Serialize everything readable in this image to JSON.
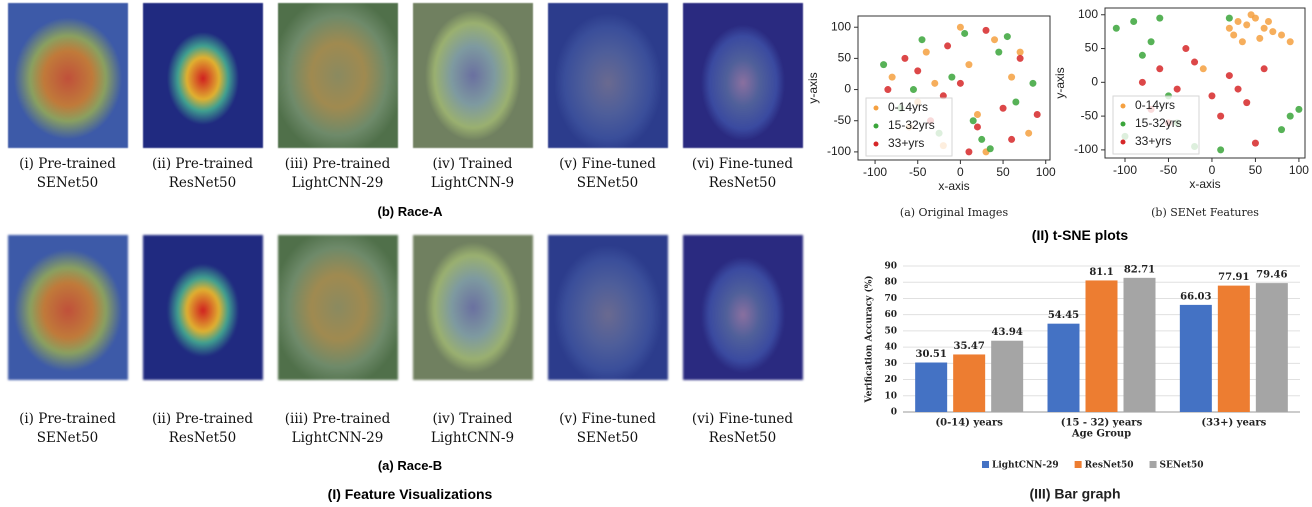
{
  "feature_visualizations": {
    "title": "(I) Feature Visualizations",
    "groups": [
      {
        "title": "(b) Race-A",
        "labels": [
          [
            "(i) Pre-trained",
            "SENet50"
          ],
          [
            "(ii) Pre-trained",
            "ResNet50"
          ],
          [
            "(iii) Pre-trained",
            "LightCNN-29"
          ],
          [
            "(iv) Trained",
            "LightCNN-9"
          ],
          [
            "(v) Fine-tuned",
            "SENet50"
          ],
          [
            "(vi) Fine-tuned",
            "ResNet50"
          ]
        ]
      },
      {
        "title": "(a) Race-B",
        "labels": [
          [
            "(i) Pre-trained",
            "SENet50"
          ],
          [
            "(ii) Pre-trained",
            "ResNet50"
          ],
          [
            "(iii) Pre-trained",
            "LightCNN-29"
          ],
          [
            "(iv) Trained",
            "LightCNN-9"
          ],
          [
            "(v) Fine-tuned",
            "SENet50"
          ],
          [
            "(vi) Fine-tuned",
            "ResNet50"
          ]
        ]
      }
    ]
  },
  "tsne_title": "(II) t-SNE plots",
  "chart_data": [
    {
      "type": "scatter",
      "caption": "(a) Original Images",
      "x_label": "x-axis",
      "y_label": "y-axis",
      "xlim": [
        -120,
        105
      ],
      "ylim": [
        -113,
        118
      ],
      "xticks": [
        -100,
        -50,
        0,
        50,
        100
      ],
      "yticks": [
        -100,
        -50,
        0,
        50,
        100
      ],
      "legend": "lower left",
      "series": [
        {
          "name": "0-14yrs",
          "color": "#f5a040",
          "x": [
            -80,
            -60,
            -40,
            -20,
            0,
            20,
            40,
            60,
            80,
            -50,
            30,
            10,
            -30,
            70
          ],
          "values": [
            20,
            -60,
            60,
            -90,
            100,
            -40,
            80,
            20,
            -70,
            -20,
            -100,
            40,
            10,
            60
          ]
        },
        {
          "name": "15-32yrs",
          "color": "#3aa53a",
          "x": [
            -90,
            -70,
            -45,
            -25,
            5,
            25,
            45,
            65,
            85,
            -55,
            35,
            -10,
            15,
            55
          ],
          "values": [
            40,
            -30,
            80,
            -70,
            90,
            -80,
            60,
            -20,
            10,
            0,
            -95,
            20,
            -50,
            85
          ]
        },
        {
          "name": "33+yrs",
          "color": "#d62728",
          "x": [
            -85,
            -65,
            -35,
            -15,
            10,
            30,
            50,
            70,
            90,
            -50,
            20,
            0,
            -20,
            60
          ],
          "values": [
            0,
            50,
            -50,
            70,
            -100,
            95,
            -30,
            50,
            -40,
            30,
            -60,
            10,
            -10,
            -80
          ]
        }
      ]
    },
    {
      "type": "scatter",
      "caption": "(b) SENet Features",
      "x_label": "x-axis",
      "y_label": "y-axis",
      "xlim": [
        -123,
        107
      ],
      "ylim": [
        -112,
        110
      ],
      "xticks": [
        -100,
        -50,
        0,
        50,
        100
      ],
      "yticks": [
        -100,
        -50,
        0,
        50,
        100
      ],
      "legend": "lower left",
      "series": [
        {
          "name": "0-14yrs",
          "color": "#f5a040",
          "x": [
            20,
            30,
            40,
            50,
            60,
            70,
            80,
            35,
            55,
            45,
            25,
            65,
            -10,
            90
          ],
          "values": [
            80,
            90,
            85,
            95,
            80,
            75,
            70,
            60,
            65,
            100,
            70,
            90,
            20,
            60
          ]
        },
        {
          "name": "15-32yrs",
          "color": "#3aa53a",
          "x": [
            -110,
            -90,
            -70,
            -50,
            -60,
            10,
            -40,
            100,
            90,
            -100,
            -80,
            20,
            80,
            -20
          ],
          "values": [
            80,
            90,
            60,
            -20,
            95,
            -100,
            -60,
            -40,
            -50,
            -80,
            40,
            95,
            -70,
            -95
          ]
        },
        {
          "name": "33+yrs",
          "color": "#d62728",
          "x": [
            -80,
            -60,
            -40,
            -20,
            0,
            20,
            40,
            60,
            -50,
            -30,
            10,
            30,
            -70,
            50
          ],
          "values": [
            0,
            20,
            -10,
            30,
            -20,
            10,
            -30,
            20,
            -60,
            50,
            -50,
            -10,
            -40,
            -90
          ]
        }
      ]
    },
    {
      "type": "bar",
      "caption": "(III) Bar graph",
      "x_label": "Age Group",
      "y_label": "Verification Accuracy (%)",
      "categories": [
        "(0-14) years",
        "(15 - 32) years",
        "(33+) years"
      ],
      "ylim": [
        0,
        90
      ],
      "yticks": [
        0,
        10,
        20,
        30,
        40,
        50,
        60,
        70,
        80,
        90
      ],
      "legend": "bottom",
      "grid": true,
      "series": [
        {
          "name": "LightCNN-29",
          "color": "#4472c4",
          "values": [
            30.51,
            54.45,
            66.03
          ]
        },
        {
          "name": "ResNet50",
          "color": "#ed7d31",
          "values": [
            35.47,
            81.1,
            77.91
          ]
        },
        {
          "name": "SENet50",
          "color": "#a5a5a5",
          "values": [
            43.94,
            82.71,
            79.46
          ]
        }
      ]
    }
  ]
}
